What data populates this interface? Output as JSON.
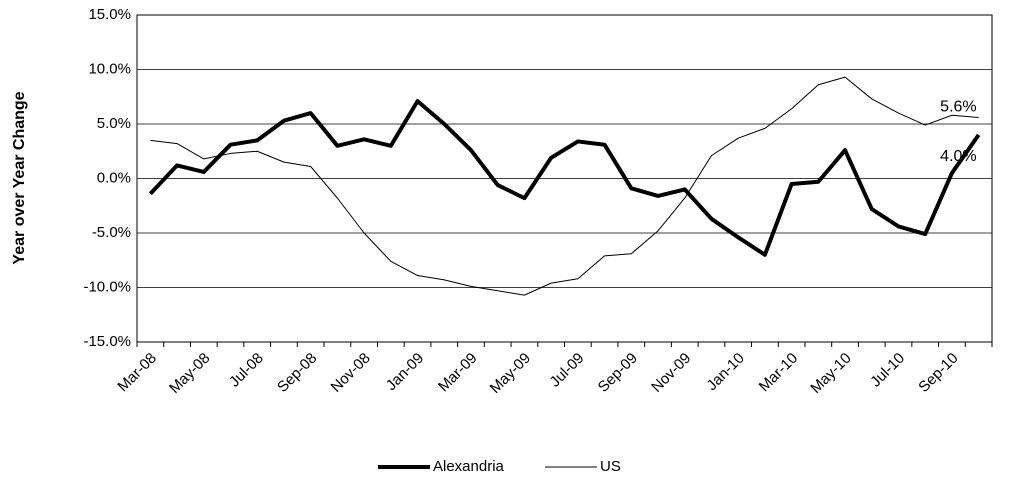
{
  "chart_data": {
    "type": "line",
    "y_label": "Year over Year Change",
    "categories": [
      "Mar-08",
      null,
      "May-08",
      null,
      "Jul-08",
      null,
      "Sep-08",
      null,
      "Nov-08",
      null,
      "Jan-09",
      null,
      "Mar-09",
      null,
      "May-09",
      null,
      "Jul-09",
      null,
      "Sep-09",
      null,
      "Nov-09",
      null,
      "Jan-10",
      null,
      "Mar-10",
      null,
      "May-10",
      null,
      "Jul-10",
      null,
      "Sep-10",
      null
    ],
    "series": [
      {
        "name": "Alexandria",
        "color": "#000000",
        "width": 4,
        "values": [
          -1.4,
          1.2,
          0.6,
          3.1,
          3.5,
          5.3,
          6.0,
          3.0,
          3.6,
          3.0,
          7.1,
          5.0,
          2.6,
          -0.6,
          -1.8,
          1.9,
          3.4,
          3.1,
          -0.9,
          -1.6,
          -1.0,
          -3.7,
          -5.4,
          -7.0,
          -0.5,
          -0.3,
          2.6,
          -2.8,
          -4.4,
          -5.1,
          0.5,
          4.0
        ],
        "value_labels": [
          null,
          null,
          null,
          null,
          null,
          null,
          null,
          null,
          null,
          null,
          null,
          null,
          null,
          null,
          null,
          null,
          null,
          null,
          null,
          null,
          null,
          null,
          null,
          null,
          null,
          null,
          null,
          null,
          null,
          null,
          null,
          "4.0%"
        ]
      },
      {
        "name": "US",
        "color": "#000000",
        "width": 1,
        "values": [
          3.5,
          3.2,
          1.8,
          2.3,
          2.5,
          1.5,
          1.1,
          -1.8,
          -5.0,
          -7.6,
          -8.9,
          -9.3,
          -9.9,
          -10.3,
          -10.7,
          -9.6,
          -9.2,
          -7.1,
          -6.9,
          -4.8,
          -1.8,
          2.1,
          3.7,
          4.6,
          6.4,
          8.6,
          9.3,
          7.3,
          6.0,
          4.9,
          5.8,
          5.6
        ],
        "value_labels": [
          null,
          null,
          null,
          null,
          null,
          null,
          null,
          null,
          null,
          null,
          null,
          null,
          null,
          null,
          null,
          null,
          null,
          null,
          null,
          null,
          null,
          null,
          null,
          null,
          null,
          null,
          null,
          null,
          null,
          null,
          null,
          "5.6%"
        ]
      }
    ],
    "ylim": [
      -15,
      15
    ],
    "yticks": [
      {
        "value": -15,
        "label": "-15.0%"
      },
      {
        "value": -10,
        "label": "-10.0%"
      },
      {
        "value": -5,
        "label": "-5.0%"
      },
      {
        "value": 0,
        "label": "0.0%"
      },
      {
        "value": 5,
        "label": "5.0%"
      },
      {
        "value": 10,
        "label": "10.0%"
      },
      {
        "value": 15,
        "label": "15.0%"
      }
    ],
    "grid": true,
    "legend": "bottom"
  }
}
